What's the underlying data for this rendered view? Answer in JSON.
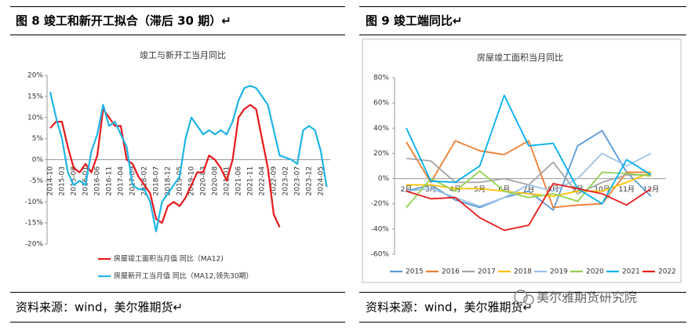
{
  "figures": [
    {
      "caption": "图 8  竣工和新开工拟合（滞后 30 期）↵",
      "source": "资料来源：wind，美尔雅期货↵"
    },
    {
      "caption": "图 9    竣工端同比↵",
      "source": "资料来源：wind，美尔雅期货↵"
    }
  ],
  "watermark": "美尔雅期货研究院",
  "chart_data": [
    {
      "type": "line",
      "title": "竣工与新开工当月同比",
      "categories": [
        "2014-10",
        null,
        "2015-03",
        null,
        "2015-08",
        null,
        "2016-01",
        null,
        "2016-06",
        null,
        "2016-11",
        null,
        "2017-04",
        null,
        "2017-09",
        null,
        "2018-02",
        null,
        "2018-07",
        null,
        "2018-12",
        null,
        "2019-05",
        null,
        "2019-10",
        null,
        "2020-03",
        null,
        "2020-08",
        null,
        "2021-01",
        null,
        "2021-06",
        null,
        "2021-11",
        null,
        "2022-04",
        null,
        "2022-09",
        null,
        "2023-02",
        null,
        "2023-07",
        null,
        "2023-12",
        null,
        "2024-05",
        null
      ],
      "series": [
        {
          "name": "房屋竣工面积当月值  同比（MA12)",
          "color": "#e8191c",
          "values": [
            7.5,
            9,
            9,
            3,
            -2,
            -3,
            -1,
            -3,
            1,
            12,
            10,
            8,
            8,
            0,
            -1,
            -4,
            -6,
            -8,
            -14,
            -15,
            -11,
            -10,
            -11,
            -9,
            -6,
            -3,
            -3,
            1,
            0,
            -2,
            -5,
            0,
            10,
            12,
            13,
            12,
            5,
            -2,
            -13,
            -16,
            null,
            null,
            null,
            null,
            null,
            null,
            null,
            null
          ]
        },
        {
          "name": "房屋新开工当月值  同比（MA12,领先30期）",
          "color": "#1fb4e6",
          "values": [
            16,
            10,
            5,
            -3,
            -6,
            -5,
            -6,
            2,
            6,
            13,
            8,
            9,
            6,
            3,
            -6,
            -7,
            -7,
            -10,
            -17,
            -10,
            -8,
            -6,
            -4,
            5,
            10,
            8,
            6,
            7,
            6,
            7,
            6,
            9,
            14,
            17,
            17.5,
            17,
            15,
            13,
            7,
            1,
            0.5,
            0,
            -1,
            7,
            8,
            7,
            2,
            -6.5
          ]
        }
      ],
      "ylim": [
        -20,
        20
      ],
      "yticks": [
        {
          "value": -20,
          "label": "-20%"
        },
        {
          "value": -15,
          "label": "-15%"
        },
        {
          "value": -10,
          "label": "-10%"
        },
        {
          "value": -5,
          "label": "-5%"
        },
        {
          "value": 0,
          "label": "0%"
        },
        {
          "value": 5,
          "label": "5%"
        },
        {
          "value": 10,
          "label": "10%"
        },
        {
          "value": 15,
          "label": "15%"
        },
        {
          "value": 20,
          "label": "20%"
        }
      ],
      "legend": "bottom-left"
    },
    {
      "type": "line",
      "title": "房屋竣工面积当月同比",
      "categories": [
        "2月",
        "3月",
        "4月",
        "5月",
        "6月",
        "7月",
        "8月",
        "9月",
        "10月",
        "11月",
        "12月"
      ],
      "series": [
        {
          "name": "2015",
          "color": "#5b9bd5",
          "values": [
            -10,
            -5,
            -17,
            -23,
            -15,
            -10,
            -25,
            26,
            38,
            5,
            -14
          ]
        },
        {
          "name": "2016",
          "color": "#ed7d31",
          "values": [
            29,
            -3,
            30,
            22,
            19,
            30,
            -23,
            -21,
            -20,
            5,
            5
          ]
        },
        {
          "name": "2017",
          "color": "#a5a5a5",
          "values": [
            16,
            14,
            -3,
            -3,
            0,
            -5,
            13,
            -12,
            -3,
            3,
            3
          ]
        },
        {
          "name": "2018",
          "color": "#ffc000",
          "values": [
            -5,
            -5,
            -8,
            -8,
            -10,
            -12,
            -14,
            -10,
            -10,
            -3,
            5
          ]
        },
        {
          "name": "2019",
          "color": "#9dc3e6",
          "values": [
            -10,
            -8,
            -15,
            -22,
            -15,
            -5,
            -10,
            0,
            20,
            10,
            20
          ]
        },
        {
          "name": "2020",
          "color": "#92d050",
          "values": [
            -23,
            0,
            -10,
            6,
            -10,
            -15,
            -12,
            -18,
            5,
            4,
            2
          ]
        },
        {
          "name": "2021",
          "color": "#00b0f0",
          "values": [
            40,
            -2,
            -3,
            10,
            66,
            26,
            28,
            -8,
            -20,
            15,
            3
          ]
        },
        {
          "name": "2022",
          "color": "#e81c1c",
          "values": [
            -10,
            -16,
            -15,
            -31,
            -41,
            -37,
            -4,
            -8,
            -12,
            -21,
            -8
          ]
        }
      ],
      "ylim": [
        -60,
        80
      ],
      "yticks": [
        {
          "value": -60,
          "label": "-60%"
        },
        {
          "value": -40,
          "label": "-40%"
        },
        {
          "value": -20,
          "label": "-20%"
        },
        {
          "value": 0,
          "label": "0%"
        },
        {
          "value": 20,
          "label": "20%"
        },
        {
          "value": 40,
          "label": "40%"
        },
        {
          "value": 60,
          "label": "60%"
        },
        {
          "value": 80,
          "label": "80%"
        }
      ],
      "legend": "bottom"
    }
  ]
}
